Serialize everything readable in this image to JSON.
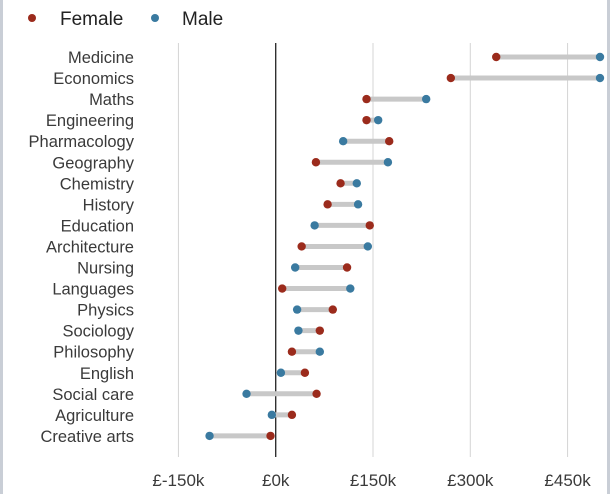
{
  "chart_data": {
    "type": "dumbbell",
    "title": "",
    "xlabel": "",
    "ylabel": "",
    "legend": {
      "position": "top-left"
    },
    "series": [
      {
        "name": "Female",
        "color": "#9b2b1c"
      },
      {
        "name": "Male",
        "color": "#3a7aa0"
      }
    ],
    "xlim": [
      -200,
      500
    ],
    "x_ticks": [
      {
        "value": -150,
        "label": "£-150k"
      },
      {
        "value": 0,
        "label": "£0k"
      },
      {
        "value": 150,
        "label": "£150k"
      },
      {
        "value": 300,
        "label": "£300k"
      },
      {
        "value": 450,
        "label": "£450k"
      }
    ],
    "grid": true,
    "categories": [
      "Medicine",
      "Economics",
      "Maths",
      "Engineering",
      "Pharmacology",
      "Geography",
      "Chemistry",
      "History",
      "Education",
      "Architecture",
      "Nursing",
      "Languages",
      "Physics",
      "Sociology",
      "Philosophy",
      "English",
      "Social care",
      "Agriculture",
      "Creative arts"
    ],
    "female": [
      340,
      270,
      140,
      140,
      175,
      62,
      100,
      80,
      145,
      40,
      110,
      10,
      88,
      68,
      25,
      45,
      63,
      25,
      -8
    ],
    "male": [
      515,
      530,
      232,
      158,
      104,
      173,
      125,
      127,
      60,
      142,
      30,
      115,
      33,
      35,
      68,
      8,
      -45,
      -6,
      -102
    ]
  }
}
